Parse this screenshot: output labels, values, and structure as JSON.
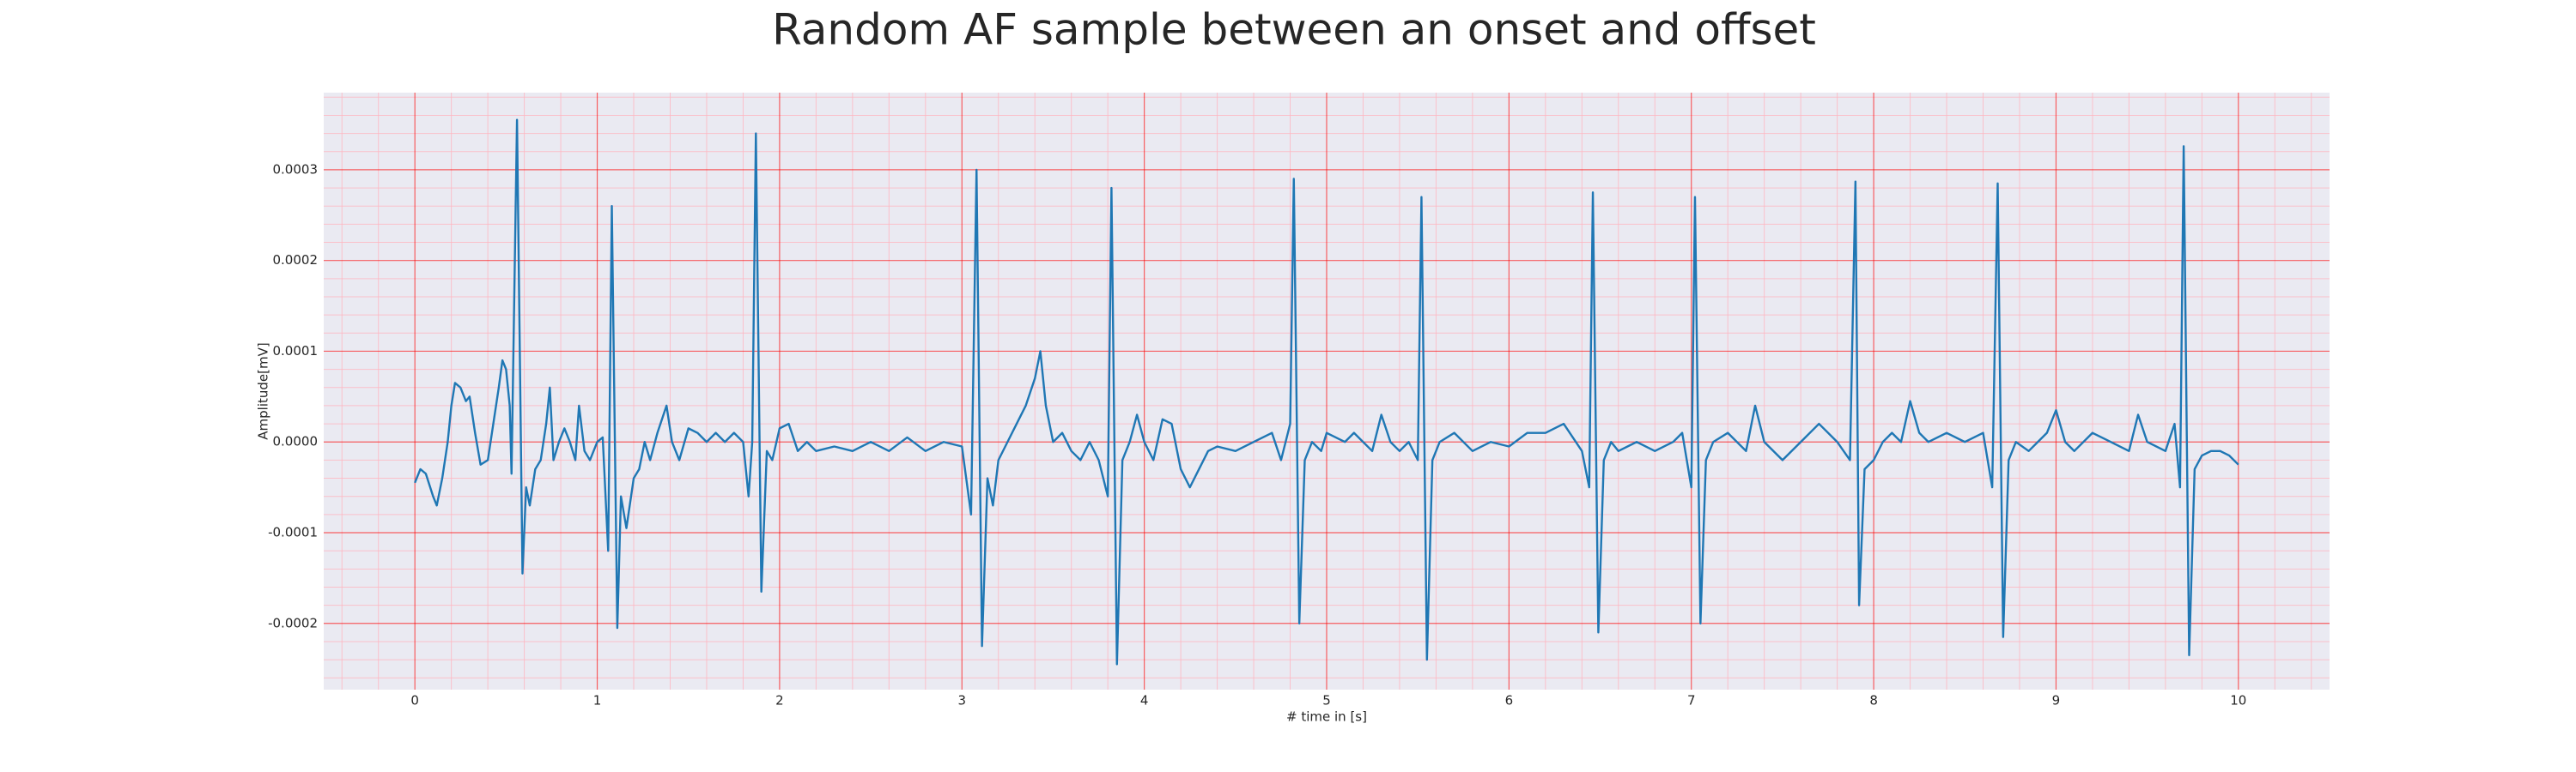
{
  "chart_data": {
    "type": "line",
    "title": "Random AF sample between an onset and offset",
    "xlabel": "# time in [s]",
    "ylabel": "Amplitude[mV]",
    "grid": true,
    "minor_grid": true,
    "xlim": [
      -0.5,
      10.5
    ],
    "ylim": [
      -0.000273,
      0.000385
    ],
    "xticks": [
      0,
      1,
      2,
      3,
      4,
      5,
      6,
      7,
      8,
      9,
      10
    ],
    "yticks": [
      -0.0002,
      -0.0001,
      {
        "value": 0,
        "label": "0.0000"
      },
      0.0001,
      0.0002,
      0.0003
    ],
    "x": [
      0,
      0.03,
      0.06,
      0.1,
      0.12,
      0.15,
      0.18,
      0.2,
      0.22,
      0.25,
      0.28,
      0.3,
      0.33,
      0.36,
      0.4,
      0.43,
      0.46,
      0.48,
      0.5,
      0.52,
      0.53,
      0.56,
      0.59,
      0.61,
      0.63,
      0.66,
      0.69,
      0.72,
      0.74,
      0.76,
      0.79,
      0.82,
      0.85,
      0.88,
      0.9,
      0.93,
      0.96,
      1.0,
      1.03,
      1.06,
      1.08,
      1.11,
      1.13,
      1.16,
      1.2,
      1.23,
      1.26,
      1.29,
      1.33,
      1.38,
      1.41,
      1.45,
      1.5,
      1.55,
      1.6,
      1.65,
      1.7,
      1.75,
      1.8,
      1.83,
      1.85,
      1.87,
      1.9,
      1.93,
      1.96,
      2.0,
      2.05,
      2.1,
      2.15,
      2.2,
      2.3,
      2.4,
      2.5,
      2.6,
      2.7,
      2.8,
      2.9,
      3.0,
      3.05,
      3.08,
      3.11,
      3.14,
      3.17,
      3.2,
      3.25,
      3.3,
      3.35,
      3.4,
      3.43,
      3.46,
      3.5,
      3.55,
      3.6,
      3.65,
      3.7,
      3.75,
      3.8,
      3.82,
      3.85,
      3.88,
      3.92,
      3.96,
      4.0,
      4.05,
      4.1,
      4.15,
      4.2,
      4.25,
      4.3,
      4.35,
      4.4,
      4.5,
      4.6,
      4.7,
      4.75,
      4.8,
      4.82,
      4.85,
      4.88,
      4.92,
      4.97,
      5.0,
      5.05,
      5.1,
      5.15,
      5.2,
      5.25,
      5.3,
      5.35,
      5.4,
      5.45,
      5.5,
      5.52,
      5.55,
      5.58,
      5.62,
      5.7,
      5.8,
      5.9,
      6.0,
      6.1,
      6.2,
      6.3,
      6.4,
      6.44,
      6.46,
      6.49,
      6.52,
      6.56,
      6.6,
      6.7,
      6.8,
      6.9,
      6.95,
      7.0,
      7.02,
      7.05,
      7.08,
      7.12,
      7.2,
      7.3,
      7.35,
      7.4,
      7.5,
      7.6,
      7.7,
      7.8,
      7.87,
      7.9,
      7.92,
      7.95,
      8.0,
      8.05,
      8.1,
      8.15,
      8.2,
      8.25,
      8.3,
      8.4,
      8.5,
      8.6,
      8.65,
      8.68,
      8.71,
      8.74,
      8.78,
      8.85,
      8.9,
      8.95,
      9.0,
      9.05,
      9.1,
      9.2,
      9.3,
      9.4,
      9.45,
      9.5,
      9.6,
      9.65,
      9.68,
      9.7,
      9.73,
      9.76,
      9.8,
      9.85,
      9.9,
      9.95,
      10.0
    ],
    "series": [
      {
        "color": "#1f77b4",
        "values": [
          -4.5e-05,
          -3e-05,
          -3.5e-05,
          -6e-05,
          -7e-05,
          -4e-05,
          0,
          4e-05,
          6.5e-05,
          6e-05,
          4.5e-05,
          5e-05,
          1e-05,
          -2.5e-05,
          -2e-05,
          2e-05,
          6e-05,
          9e-05,
          8e-05,
          4e-05,
          -3.5e-05,
          0.000355,
          -0.000145,
          -5e-05,
          -7e-05,
          -3e-05,
          -2e-05,
          2e-05,
          6e-05,
          -2e-05,
          0,
          1.5e-05,
          0,
          -2e-05,
          4e-05,
          -1e-05,
          -2e-05,
          0,
          5e-06,
          -0.00012,
          0.00026,
          -0.000205,
          -6e-05,
          -9.5e-05,
          -4e-05,
          -3e-05,
          0,
          -2e-05,
          1e-05,
          4e-05,
          0,
          -2e-05,
          1.5e-05,
          1e-05,
          0,
          1e-05,
          0,
          1e-05,
          0,
          -6e-05,
          0,
          0.00034,
          -0.000165,
          -1e-05,
          -2e-05,
          1.5e-05,
          2e-05,
          -1e-05,
          0,
          -1e-05,
          -5e-06,
          -1e-05,
          0,
          -1e-05,
          5e-06,
          -1e-05,
          0,
          -5e-06,
          -8e-05,
          0.0003,
          -0.000225,
          -4e-05,
          -7e-05,
          -2e-05,
          0,
          2e-05,
          4e-05,
          7e-05,
          0.0001,
          4e-05,
          0,
          1e-05,
          -1e-05,
          -2e-05,
          0,
          -2e-05,
          -6e-05,
          0.00028,
          -0.000245,
          -2e-05,
          0,
          3e-05,
          0,
          -2e-05,
          2.5e-05,
          2e-05,
          -3e-05,
          -5e-05,
          -3e-05,
          -1e-05,
          -5e-06,
          -1e-05,
          0,
          1e-05,
          -2e-05,
          2e-05,
          0.00029,
          -0.0002,
          -2e-05,
          0,
          -1e-05,
          1e-05,
          5e-06,
          0,
          1e-05,
          0,
          -1e-05,
          3e-05,
          0,
          -1e-05,
          0,
          -2e-05,
          0.00027,
          -0.00024,
          -2e-05,
          0,
          1e-05,
          -1e-05,
          0,
          -5e-06,
          1e-05,
          1e-05,
          2e-05,
          -1e-05,
          -5e-05,
          0.000275,
          -0.00021,
          -2e-05,
          0,
          -1e-05,
          0,
          -1e-05,
          0,
          1e-05,
          -5e-05,
          0.00027,
          -0.0002,
          -2e-05,
          0,
          1e-05,
          -1e-05,
          4e-05,
          0,
          -2e-05,
          0,
          2e-05,
          0,
          -2e-05,
          0.000287,
          -0.00018,
          -3e-05,
          -2e-05,
          0,
          1e-05,
          0,
          4.5e-05,
          1e-05,
          0,
          1e-05,
          0,
          1e-05,
          -5e-05,
          0.000285,
          -0.000215,
          -2e-05,
          0,
          -1e-05,
          0,
          1e-05,
          3.5e-05,
          0,
          -1e-05,
          1e-05,
          0,
          -1e-05,
          3e-05,
          0,
          -1e-05,
          2e-05,
          -5e-05,
          0.000326,
          -0.000235,
          -3e-05,
          -1.5e-05,
          -1e-05,
          -1e-05,
          -1.5e-05,
          -2.5e-05
        ]
      }
    ]
  }
}
